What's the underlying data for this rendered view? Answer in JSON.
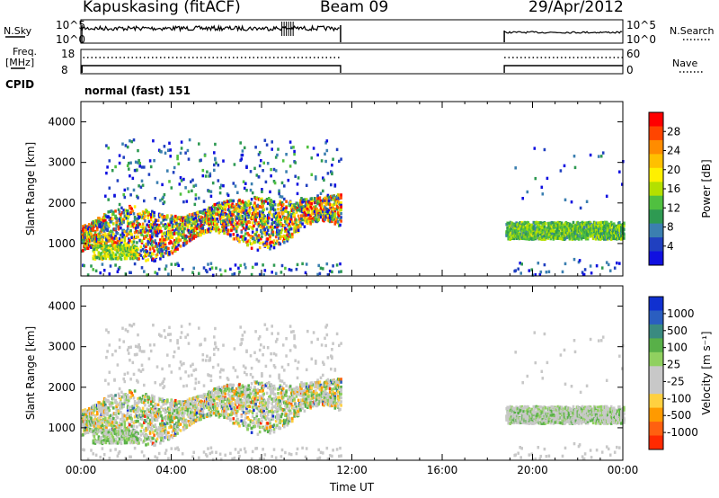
{
  "header": {
    "station": "Kapuskasing (fitACF)",
    "beam": "Beam 09",
    "date": "29/Apr/2012"
  },
  "panels": {
    "nsky_label": "N.Sky",
    "nsky_ticks": [
      "10^5",
      "10^0"
    ],
    "nsearch_label": "N.Search",
    "nsearch_ticks": [
      "10^5",
      "10^0"
    ],
    "freq_label": "Freq.",
    "freq_unit": "[MHz]",
    "freq_ticks": [
      "18",
      "8"
    ],
    "nave_label": "Nave",
    "nave_ticks": [
      "60",
      "0"
    ],
    "cpid_label": "CPID",
    "cpid_text": "normal (fast) 151"
  },
  "colorbars": {
    "power": {
      "title": "Power [dB]",
      "ticks": [
        "28",
        "24",
        "20",
        "16",
        "12",
        "8",
        "4"
      ],
      "colors": [
        "#ff0000",
        "#ff4500",
        "#ff8c00",
        "#ffc000",
        "#fff000",
        "#b4e000",
        "#50c040",
        "#2e9a52",
        "#3b7fb0",
        "#2040c0",
        "#1010e0"
      ]
    },
    "velocity": {
      "title": "Velocity [m s⁻¹]",
      "ticks": [
        "1000",
        "500",
        "100",
        "25",
        "-25",
        "-100",
        "-500",
        "-1000"
      ],
      "colors": [
        "#1030d0",
        "#2a5ec0",
        "#3a8a80",
        "#58b048",
        "#90d060",
        "#c8c8c8",
        "#c8c8c8",
        "#ffd040",
        "#ff9a00",
        "#ff6010",
        "#ff2a00"
      ]
    }
  },
  "x_axis": {
    "title": "Time UT",
    "ticks": [
      "00:00",
      "04:00",
      "08:00",
      "12:00",
      "16:00",
      "20:00",
      "00:00"
    ]
  },
  "chart_data": [
    {
      "type": "heatmap",
      "title": "Power",
      "xlabel": "Time UT",
      "ylabel": "Slant Range [km]",
      "ylim": [
        200,
        4500
      ],
      "yticks": [
        1000,
        2000,
        3000,
        4000
      ],
      "xlim": [
        0,
        24
      ],
      "data_gap_hours": [
        11.5,
        18.75
      ],
      "colorbar_range_dB": [
        0,
        32
      ]
    },
    {
      "type": "heatmap",
      "title": "Velocity",
      "xlabel": "Time UT",
      "ylabel": "Slant Range [km]",
      "ylim": [
        200,
        4500
      ],
      "yticks": [
        1000,
        2000,
        3000,
        4000
      ],
      "xlim": [
        0,
        24
      ],
      "data_gap_hours": [
        11.5,
        18.75
      ],
      "colorbar_range_ms": [
        -1000,
        1000
      ]
    }
  ]
}
